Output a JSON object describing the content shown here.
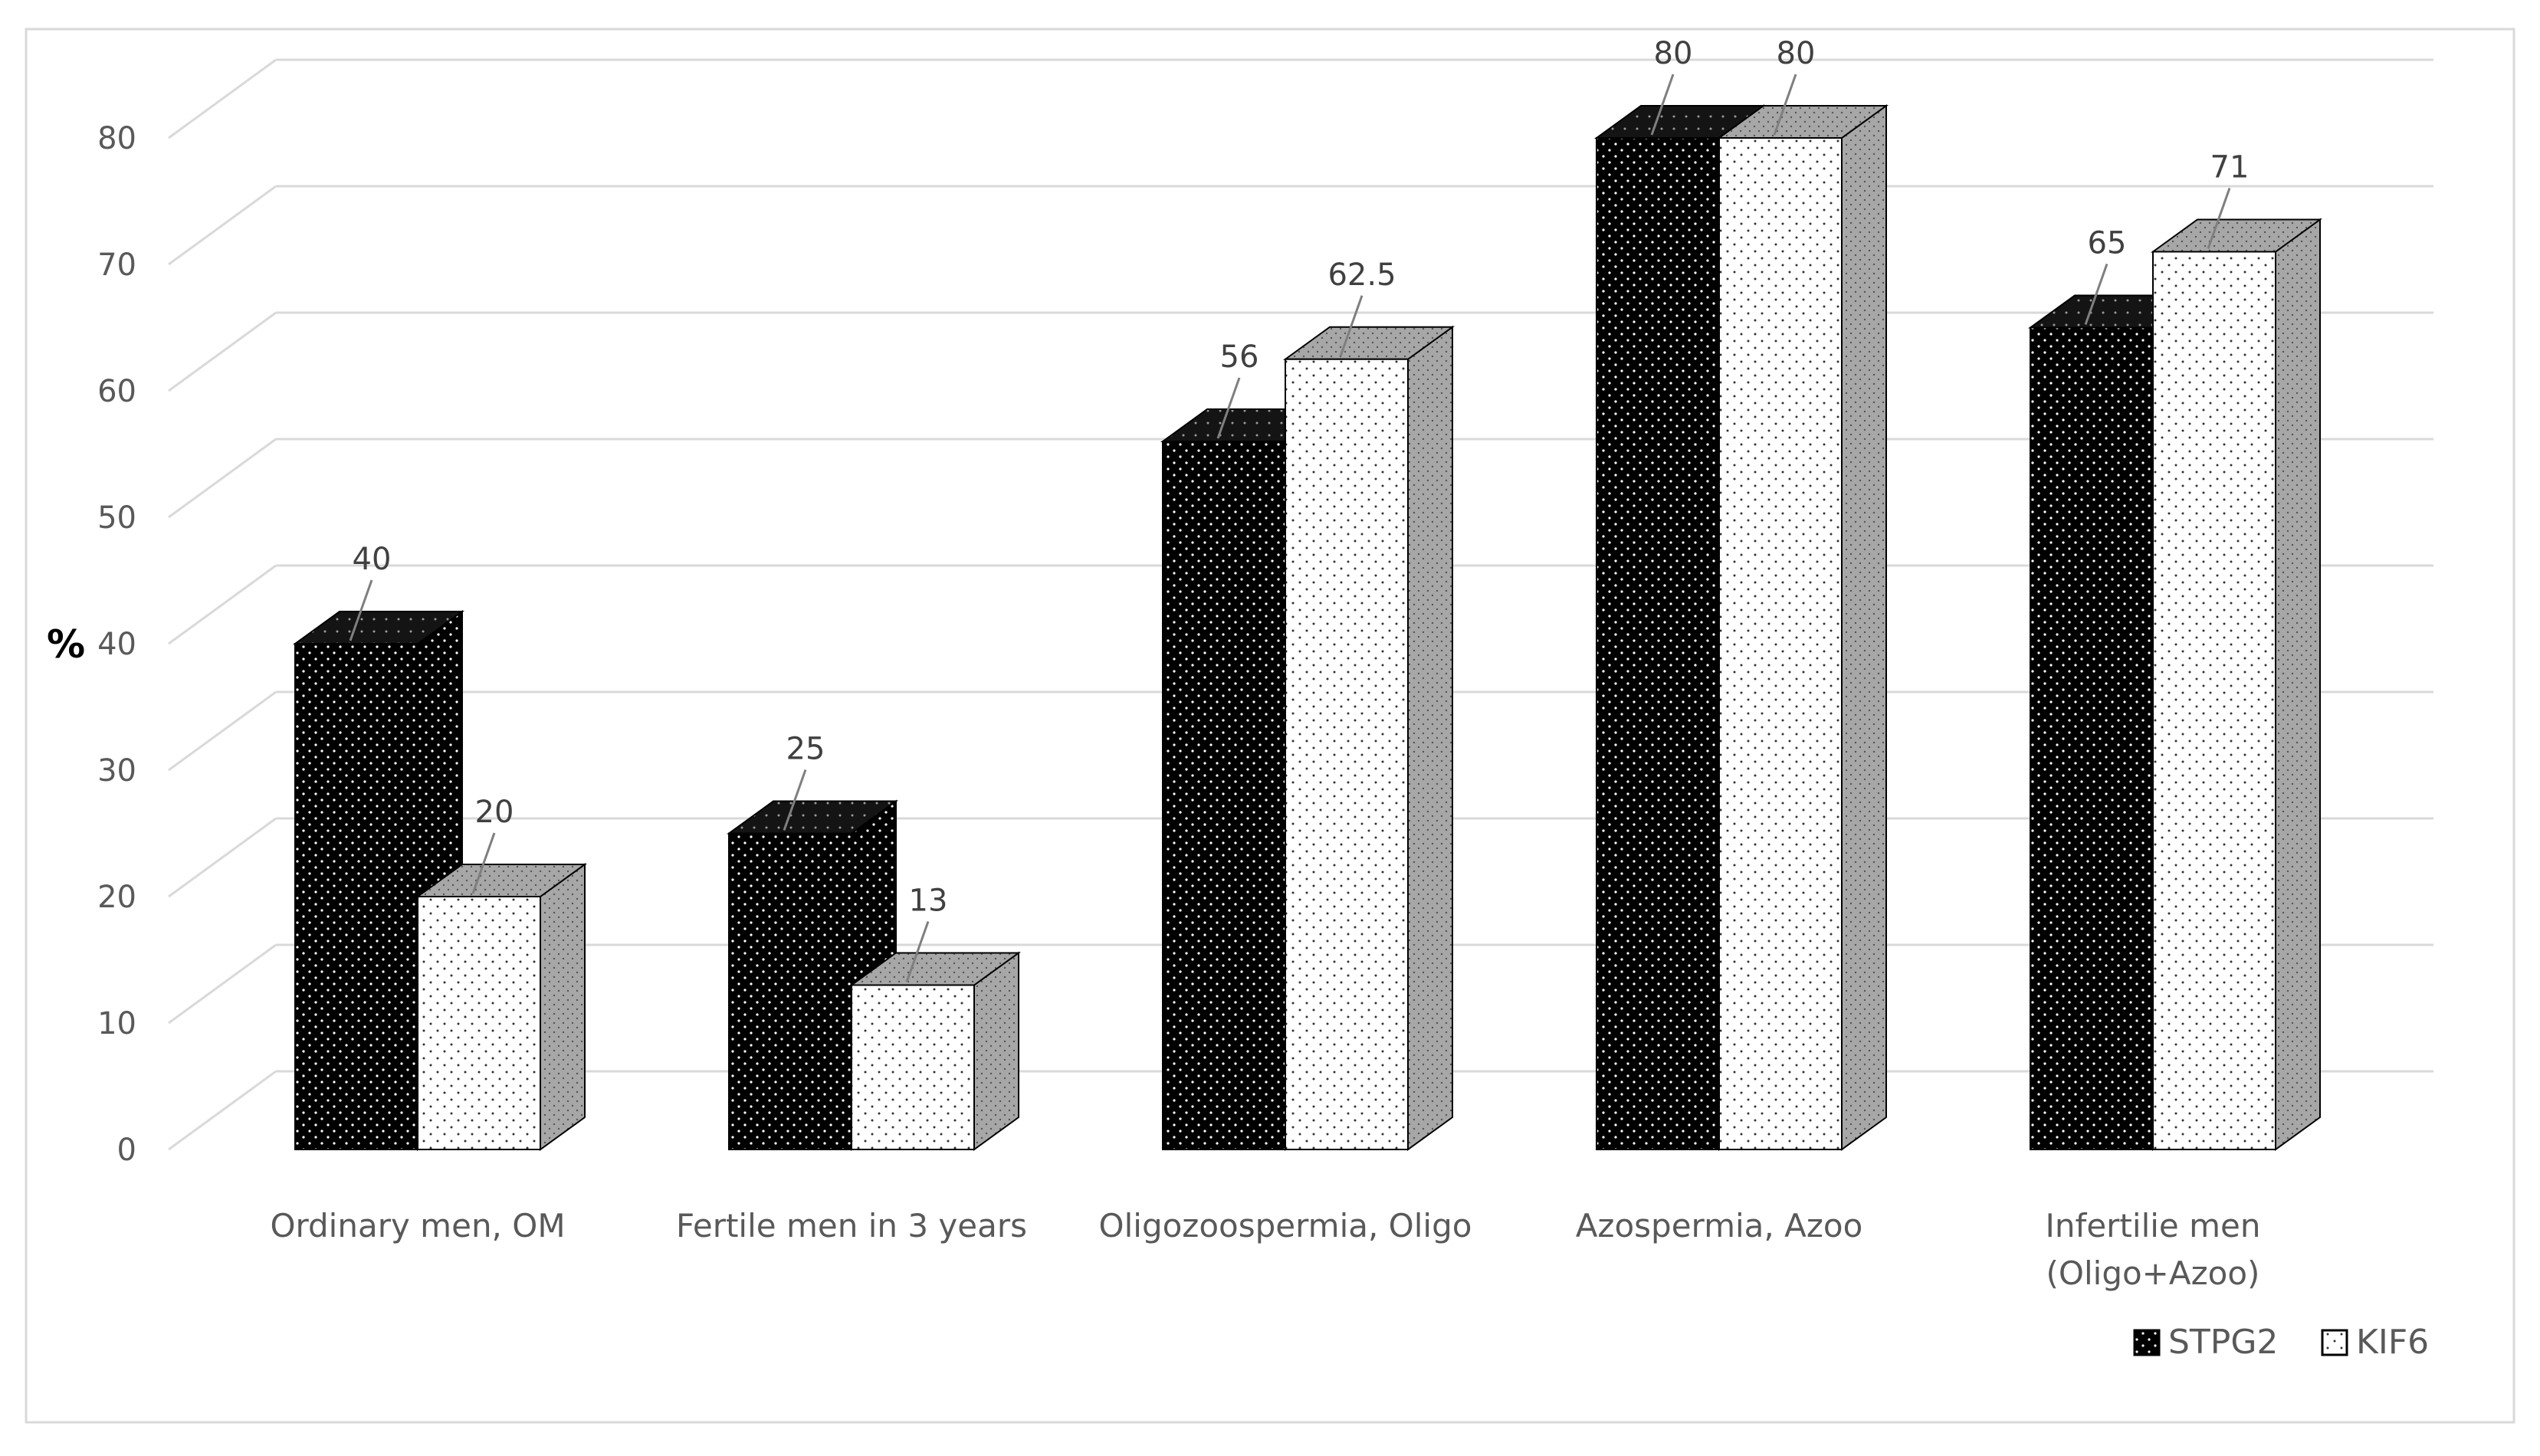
{
  "chart_data": {
    "type": "bar",
    "title": "",
    "xlabel": "",
    "ylabel": "%",
    "ylim": [
      0,
      80
    ],
    "yticks": [
      0,
      10,
      20,
      30,
      40,
      50,
      60,
      70,
      80
    ],
    "grid": true,
    "legend_position": "bottom-right",
    "categories": [
      [
        "Ordinary men, OM"
      ],
      [
        "Fertile men in 3 years"
      ],
      [
        "Oligozoospermia, Oligo"
      ],
      [
        "Azospermia, Azoo"
      ],
      [
        "Infertilie men",
        "(Oligo+Azoo)"
      ]
    ],
    "series": [
      {
        "name": "STPG2",
        "values": [
          40,
          25,
          56,
          80,
          65
        ],
        "labels": [
          "40",
          "25",
          "56",
          "80",
          "65"
        ],
        "color": "#000000"
      },
      {
        "name": "KIF6",
        "values": [
          20,
          13,
          62.5,
          80,
          71
        ],
        "labels": [
          "20",
          "13",
          "62.5",
          "80",
          "71"
        ],
        "color": "#ffffff"
      }
    ]
  }
}
